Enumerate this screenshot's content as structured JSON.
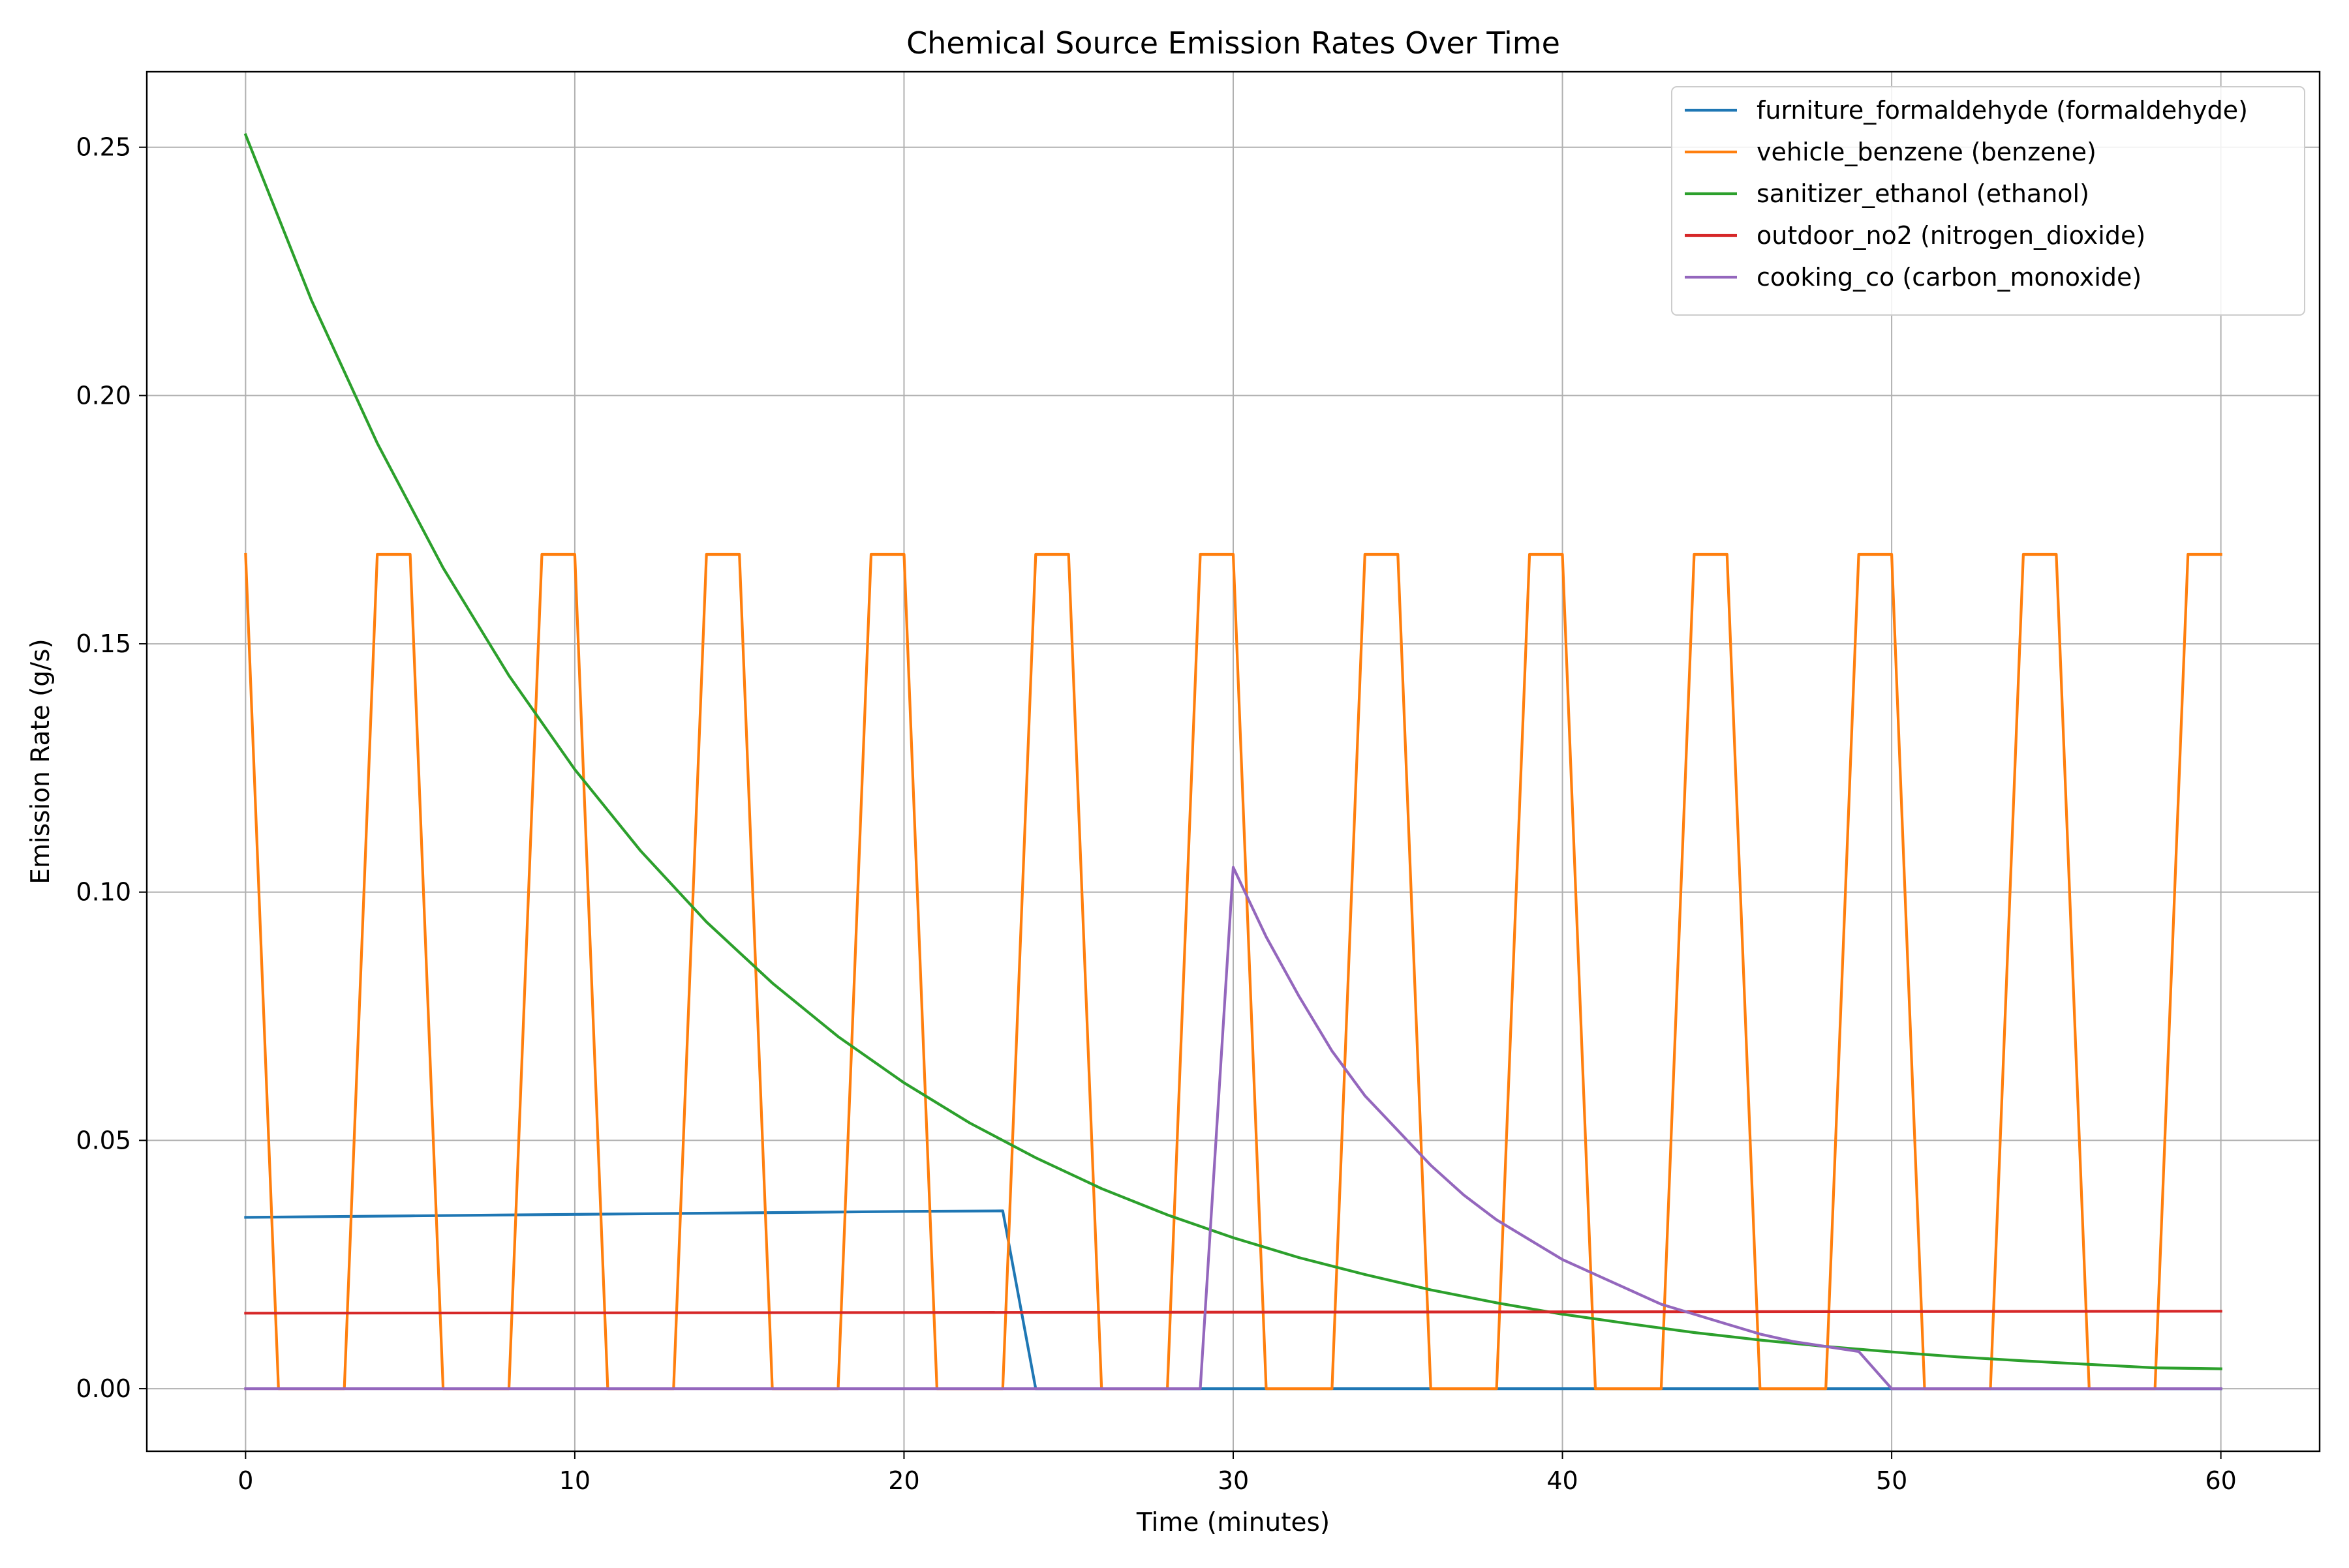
{
  "chart_data": {
    "type": "line",
    "title": "Chemical Source Emission Rates Over Time",
    "xlabel": "Time (minutes)",
    "ylabel": "Emission Rate (g/s)",
    "xlim": [
      -3,
      63
    ],
    "ylim": [
      -0.0126,
      0.2652
    ],
    "xticks": [
      0,
      10,
      20,
      30,
      40,
      50,
      60
    ],
    "xtick_labels": [
      "0",
      "10",
      "20",
      "30",
      "40",
      "50",
      "60"
    ],
    "yticks": [
      0.0,
      0.05,
      0.1,
      0.15,
      0.2,
      0.25
    ],
    "ytick_labels": [
      "0.00",
      "0.05",
      "0.10",
      "0.15",
      "0.20",
      "0.25"
    ],
    "grid": true,
    "legend_position": "top-right",
    "series": [
      {
        "name": "furniture_formaldehyde (formaldehyde)",
        "color": "#1f77b4",
        "x": [
          0,
          5,
          10,
          15,
          20,
          23,
          24,
          60
        ],
        "y": [
          0.0345,
          0.0348,
          0.0351,
          0.0354,
          0.0357,
          0.0358,
          0.0,
          0.0
        ]
      },
      {
        "name": "vehicle_benzene (benzene)",
        "color": "#ff7f0e",
        "x": [
          0,
          1,
          3,
          4,
          5,
          6,
          8,
          9,
          10,
          11,
          13,
          14,
          15,
          16,
          18,
          19,
          20,
          21,
          23,
          24,
          25,
          26,
          28,
          29,
          30,
          31,
          33,
          34,
          35,
          36,
          38,
          39,
          40,
          41,
          43,
          44,
          45,
          46,
          48,
          49,
          50,
          51,
          53,
          54,
          55,
          56,
          58,
          59,
          60
        ],
        "y": [
          0.168,
          0.0,
          0.0,
          0.168,
          0.168,
          0.0,
          0.0,
          0.168,
          0.168,
          0.0,
          0.0,
          0.168,
          0.168,
          0.0,
          0.0,
          0.168,
          0.168,
          0.0,
          0.0,
          0.168,
          0.168,
          0.0,
          0.0,
          0.168,
          0.168,
          0.0,
          0.0,
          0.168,
          0.168,
          0.0,
          0.0,
          0.168,
          0.168,
          0.0,
          0.0,
          0.168,
          0.168,
          0.0,
          0.0,
          0.168,
          0.168,
          0.0,
          0.0,
          0.168,
          0.168,
          0.0,
          0.0,
          0.168,
          0.168
        ]
      },
      {
        "name": "sanitizer_ethanol (ethanol)",
        "color": "#2ca02c",
        "x": [
          0,
          2,
          4,
          6,
          8,
          10,
          12,
          14,
          16,
          18,
          20,
          22,
          24,
          26,
          28,
          30,
          32,
          34,
          36,
          38,
          40,
          42,
          44,
          46,
          48,
          50,
          52,
          54,
          56,
          58,
          60
        ],
        "y": [
          0.2525,
          0.2192,
          0.1904,
          0.1653,
          0.1436,
          0.1247,
          0.1083,
          0.094,
          0.0817,
          0.0709,
          0.0616,
          0.0535,
          0.0465,
          0.0403,
          0.035,
          0.0304,
          0.0264,
          0.023,
          0.0199,
          0.0173,
          0.015,
          0.0131,
          0.0113,
          0.0098,
          0.0085,
          0.0074,
          0.0064,
          0.0056,
          0.0049,
          0.0042,
          0.004
        ]
      },
      {
        "name": "outdoor_no2 (nitrogen_dioxide)",
        "color": "#d62728",
        "x": [
          0,
          60
        ],
        "y": [
          0.0152,
          0.0156
        ]
      },
      {
        "name": "cooking_co (carbon_monoxide)",
        "color": "#9467bd",
        "x": [
          0,
          29,
          30,
          31,
          32,
          33,
          34,
          35,
          36,
          37,
          38,
          39,
          40,
          41,
          42,
          43,
          44,
          45,
          46,
          47,
          48,
          49,
          50,
          60
        ],
        "y": [
          0.0,
          0.0,
          0.105,
          0.091,
          0.079,
          0.068,
          0.059,
          0.052,
          0.045,
          0.039,
          0.034,
          0.03,
          0.026,
          0.023,
          0.02,
          0.017,
          0.015,
          0.013,
          0.011,
          0.0095,
          0.0085,
          0.0075,
          0.0,
          0.0
        ]
      }
    ]
  }
}
